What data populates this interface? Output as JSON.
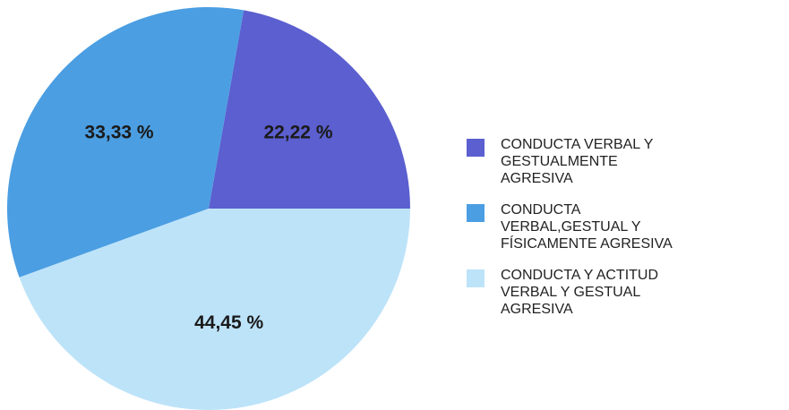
{
  "chart_data": {
    "type": "pie",
    "categories": [
      "CONDUCTA VERBAL Y GESTUALMENTE AGRESIVA",
      "CONDUCTA VERBAL,GESTUAL Y FÍSICAMENTE AGRESIVA",
      "CONDUCTA Y ACTITUD VERBAL Y GESTUAL AGRESIVA"
    ],
    "values": [
      22.22,
      33.33,
      44.45
    ],
    "value_labels": [
      "22,22 %",
      "33,33 %",
      "44,45 %"
    ],
    "colors": [
      "#5b5fcf",
      "#4b9ee2",
      "#bde3f9"
    ],
    "legend": "right"
  }
}
